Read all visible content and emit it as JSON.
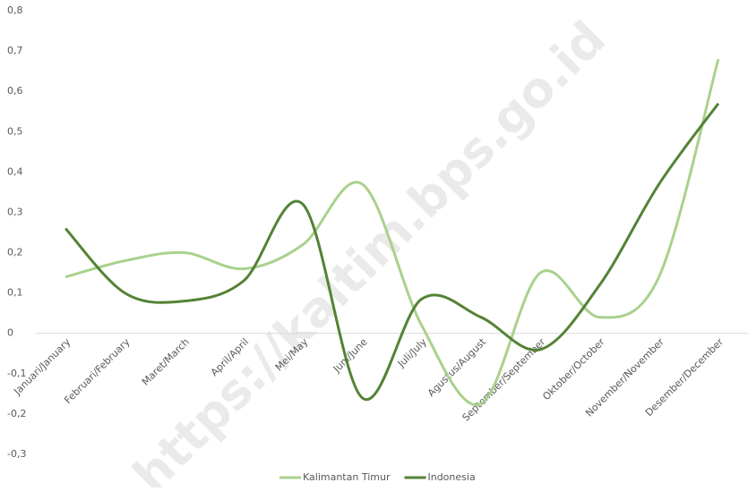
{
  "chart_data": {
    "type": "line",
    "categories": [
      "Januari/January",
      "Februari/February",
      "Maret/March",
      "April/April",
      "Mei/May",
      "Juni/June",
      "Juli/July",
      "Agustus/August",
      "September/September",
      "Oktober/October",
      "November/November",
      "Desember/December"
    ],
    "series": [
      {
        "name": "Kalimantan Timur",
        "color": "#a9d18e",
        "values": [
          0.14,
          0.18,
          0.2,
          0.16,
          0.22,
          0.37,
          0.02,
          -0.175,
          0.15,
          0.04,
          0.14,
          0.68
        ]
      },
      {
        "name": "Indonesia",
        "color": "#548235",
        "values": [
          0.26,
          0.1,
          0.08,
          0.13,
          0.32,
          -0.16,
          0.085,
          0.04,
          -0.04,
          0.12,
          0.37,
          0.57
        ]
      }
    ],
    "ylim": [
      -0.3,
      0.8
    ],
    "yticks": [
      {
        "value": -0.3,
        "label": "-0,3"
      },
      {
        "value": -0.2,
        "label": "-0,2"
      },
      {
        "value": -0.1,
        "label": "-0,1"
      },
      0,
      {
        "value": 0.1,
        "label": "0,1"
      },
      {
        "value": 0.2,
        "label": "0,2"
      },
      {
        "value": 0.3,
        "label": "0,3"
      },
      {
        "value": 0.4,
        "label": "0,4"
      },
      {
        "value": 0.5,
        "label": "0,5"
      },
      {
        "value": 0.6,
        "label": "0,6"
      },
      {
        "value": 0.7,
        "label": "0,7"
      },
      {
        "value": 0.8,
        "label": "0,8"
      }
    ],
    "grid": false,
    "legend": "bottom",
    "watermark": "https://kaltim.bps.go.id"
  }
}
